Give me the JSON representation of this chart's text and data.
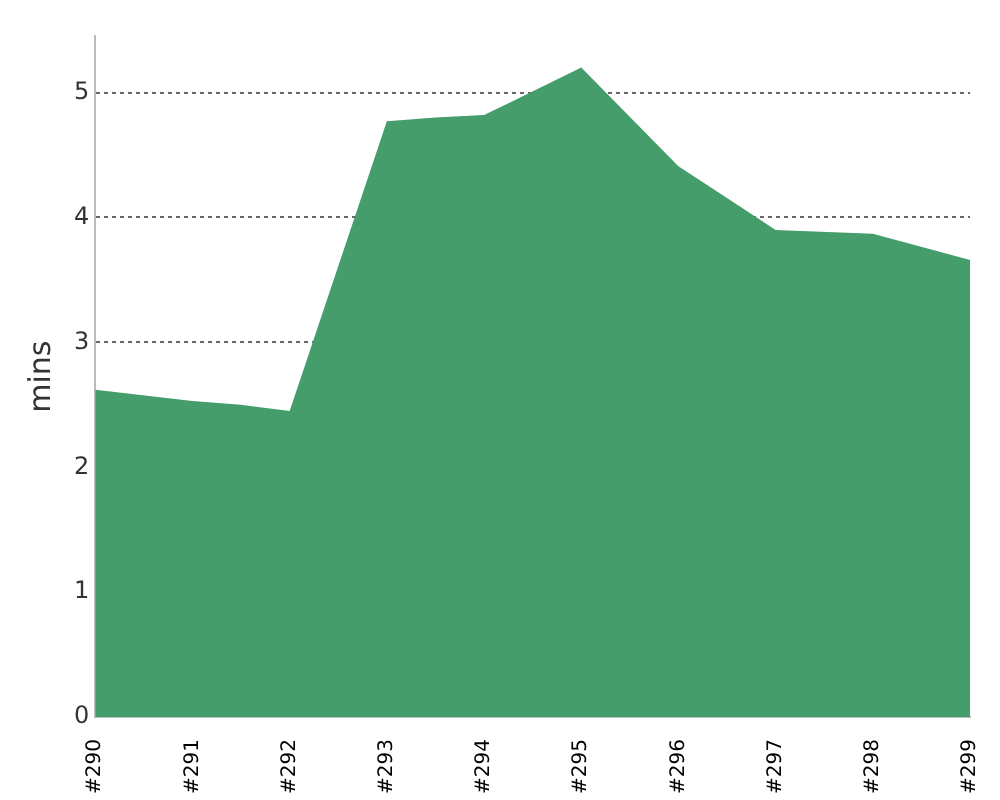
{
  "chart_data": {
    "type": "area",
    "ylabel": "mins",
    "x": [
      290,
      291,
      291.5,
      292,
      293,
      293.5,
      294,
      295,
      296,
      297,
      298,
      299
    ],
    "series": [
      {
        "color": "#449d6b",
        "values": [
          2.62,
          2.53,
          2.5,
          2.45,
          4.77,
          4.8,
          4.82,
          5.2,
          4.41,
          3.9,
          3.87,
          3.66
        ]
      }
    ],
    "xlim": [
      290,
      299
    ],
    "xticks": [
      {
        "value": 290,
        "label": "#290"
      },
      {
        "value": 291,
        "label": "#291"
      },
      {
        "value": 292,
        "label": "#292"
      },
      {
        "value": 293,
        "label": "#293"
      },
      {
        "value": 294,
        "label": "#294"
      },
      {
        "value": 295,
        "label": "#295"
      },
      {
        "value": 296,
        "label": "#296"
      },
      {
        "value": 297,
        "label": "#297"
      },
      {
        "value": 298,
        "label": "#298"
      },
      {
        "value": 299,
        "label": "#299"
      }
    ],
    "ylim": [
      0,
      5.45
    ],
    "yticks": [
      0,
      1,
      2,
      3,
      4,
      5
    ],
    "grid": "y",
    "legend": false,
    "marker": "none"
  }
}
